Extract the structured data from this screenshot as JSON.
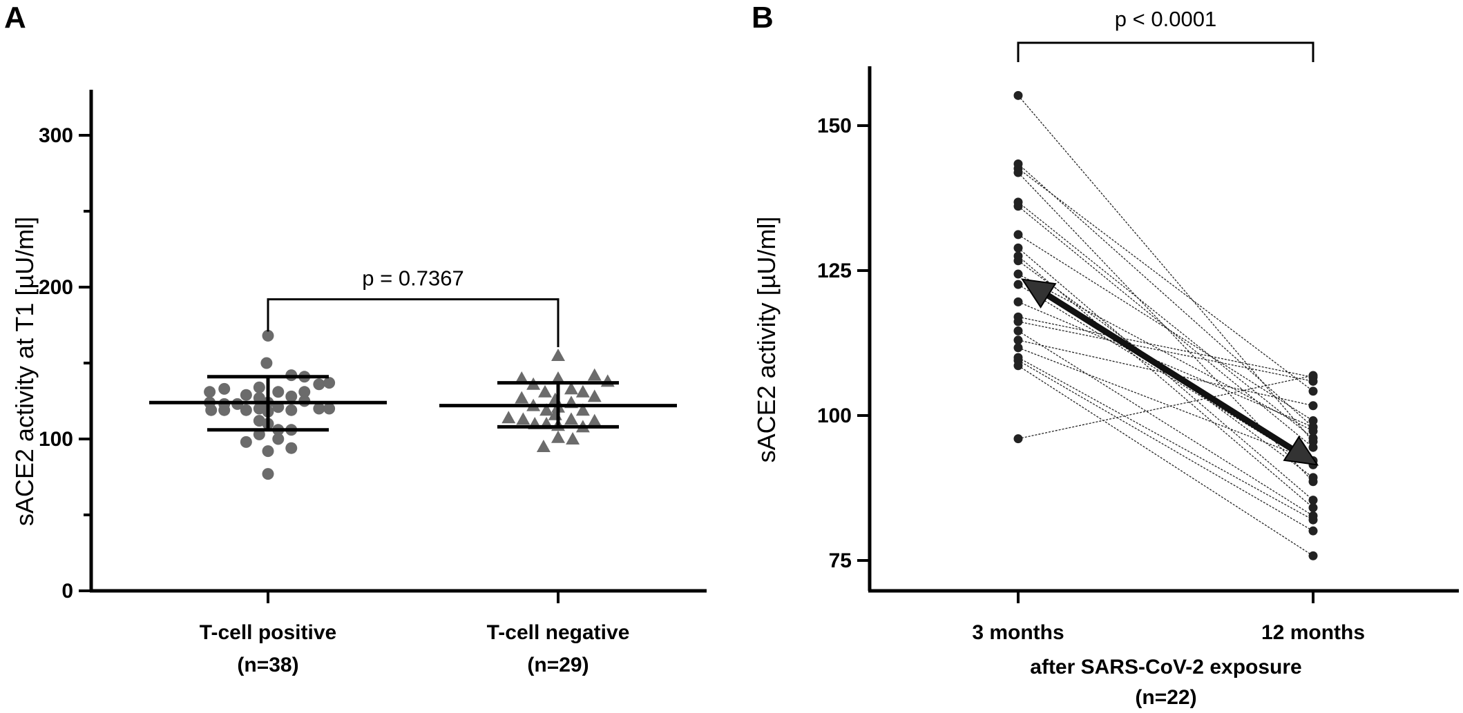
{
  "panels": [
    {
      "letter": "A"
    },
    {
      "letter": "B"
    }
  ],
  "chart_data": [
    {
      "type": "scatter",
      "panel": "A",
      "ylabel": "sACE2 activity at T1 [µU/ml]",
      "ylim": [
        0,
        330
      ],
      "yticks": [
        0,
        100,
        200,
        300
      ],
      "ytick_labels": [
        "0",
        "100",
        "200",
        "300"
      ],
      "grid": false,
      "categories": [
        {
          "line1": "T-cell positive",
          "line2": "(n=38)"
        },
        {
          "line1": "T-cell negative",
          "line2": "(n=29)"
        }
      ],
      "series": [
        {
          "marker": "circle",
          "color": "#6b6b6b",
          "median": 124,
          "q1": 106,
          "q3": 141,
          "points": [
            [
              -0.4,
              131
            ],
            [
              -0.4,
              124
            ],
            [
              -0.39,
              119
            ],
            [
              -0.3,
              133
            ],
            [
              -0.3,
              123
            ],
            [
              -0.3,
              119
            ],
            [
              -0.21,
              123
            ],
            [
              -0.15,
              129
            ],
            [
              -0.15,
              119
            ],
            [
              -0.15,
              98
            ],
            [
              -0.06,
              134
            ],
            [
              -0.06,
              127
            ],
            [
              -0.06,
              120
            ],
            [
              -0.06,
              112
            ],
            [
              -0.06,
              103
            ],
            [
              -0.01,
              150
            ],
            [
              0.0,
              168
            ],
            [
              0.0,
              124
            ],
            [
              0.0,
              118
            ],
            [
              0.0,
              110
            ],
            [
              0.0,
              92
            ],
            [
              0.0,
              77
            ],
            [
              0.07,
              131
            ],
            [
              0.07,
              121
            ],
            [
              0.07,
              106
            ],
            [
              0.07,
              100
            ],
            [
              0.16,
              142
            ],
            [
              0.16,
              128
            ],
            [
              0.16,
              119
            ],
            [
              0.16,
              106
            ],
            [
              0.16,
              94
            ],
            [
              0.25,
              141
            ],
            [
              0.25,
              131
            ],
            [
              0.25,
              125
            ],
            [
              0.35,
              136
            ],
            [
              0.35,
              120
            ],
            [
              0.42,
              137
            ],
            [
              0.42,
              120
            ]
          ]
        },
        {
          "marker": "triangle",
          "color": "#6b6b6b",
          "median": 122,
          "q1": 108,
          "q3": 137,
          "points": [
            [
              -0.34,
              114
            ],
            [
              -0.25,
              140
            ],
            [
              -0.24,
              113
            ],
            [
              -0.25,
              127
            ],
            [
              -0.17,
              136
            ],
            [
              -0.17,
              122
            ],
            [
              -0.16,
              110
            ],
            [
              -0.09,
              131
            ],
            [
              -0.08,
              119
            ],
            [
              -0.08,
              110
            ],
            [
              -0.1,
              95
            ],
            [
              -0.02,
              126
            ],
            [
              -0.02,
              116
            ],
            [
              0.0,
              155
            ],
            [
              0.0,
              140
            ],
            [
              0.0,
              121
            ],
            [
              0.0,
              109
            ],
            [
              0.0,
              101
            ],
            [
              0.09,
              133
            ],
            [
              0.09,
              124
            ],
            [
              0.09,
              113
            ],
            [
              0.1,
              100
            ],
            [
              0.17,
              131
            ],
            [
              0.17,
              119
            ],
            [
              0.17,
              108
            ],
            [
              0.25,
              142
            ],
            [
              0.25,
              128
            ],
            [
              0.25,
              112
            ],
            [
              0.34,
              138
            ]
          ]
        }
      ],
      "significance": {
        "label": "p = 0.7367",
        "y": 192
      }
    },
    {
      "type": "line",
      "panel": "B",
      "ylabel": "sACE2 activity [µU/ml]",
      "ylim": [
        70,
        160
      ],
      "yticks": [
        75,
        100,
        125,
        150
      ],
      "ytick_labels": [
        "75",
        "100",
        "125",
        "150"
      ],
      "grid": false,
      "categories": [
        "3 months",
        "12 months"
      ],
      "xlabel_line1": "after SARS-CoV-2 exposure",
      "xlabel_line2": "(n=22)",
      "pairs": [
        [
          155.2,
          95.5
        ],
        [
          143.4,
          98.0
        ],
        [
          142.6,
          104.2
        ],
        [
          141.9,
          88.6
        ],
        [
          136.8,
          96.1
        ],
        [
          136.1,
          94.5
        ],
        [
          131.2,
          99.1
        ],
        [
          128.9,
          85.4
        ],
        [
          127.5,
          84.1
        ],
        [
          126.7,
          89.3
        ],
        [
          124.4,
          97.3
        ],
        [
          122.6,
          91.5
        ],
        [
          119.6,
          98.0
        ],
        [
          117.0,
          106.6
        ],
        [
          116.2,
          105.9
        ],
        [
          114.6,
          82.7
        ],
        [
          113.0,
          101.7
        ],
        [
          111.7,
          92.2
        ],
        [
          110.0,
          82.0
        ],
        [
          109.5,
          80.1
        ],
        [
          108.6,
          75.8
        ],
        [
          96.0,
          106.9
        ]
      ],
      "arrow": {
        "from": 123.5,
        "to": 91.5
      },
      "significance": {
        "label": "p < 0.0001",
        "y": 158.5
      }
    }
  ]
}
